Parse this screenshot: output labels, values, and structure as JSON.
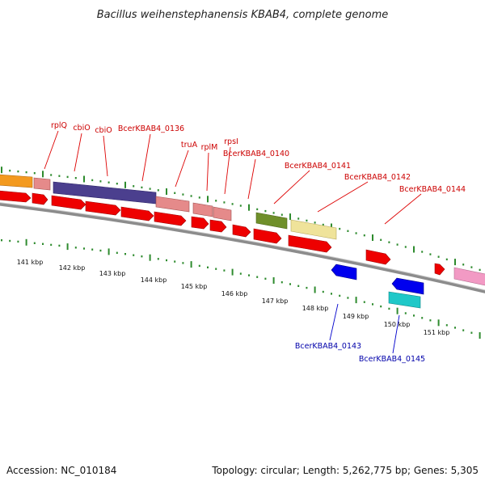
{
  "title": "Bacillus weihenstephanensis KBAB4, complete genome",
  "footer": {
    "accession": "Accession: NC_010184",
    "topology": "Topology: circular; Length: 5,262,775 bp; Genes: 5,305"
  },
  "colors": {
    "track_gray": "#8c8c8c",
    "tick_green": "#2e8b2e",
    "gene_red": "#ee0000",
    "label_red": "#cc0000",
    "label_blue": "#0000aa"
  },
  "scale_labels": [
    "141 kbp",
    "142 kbp",
    "143 kbp",
    "144 kbp",
    "145 kbp",
    "146 kbp",
    "147 kbp",
    "148 kbp",
    "149 kbp",
    "150 kbp",
    "151 kbp"
  ],
  "gene_labels_top": [
    "rplQ",
    "cbiO",
    "cbiO",
    "BcerKBAB4_0136",
    "truA",
    "rplM",
    "rpsI",
    "BcerKBAB4_0140",
    "BcerKBAB4_0141",
    "BcerKBAB4_0142",
    "BcerKBAB4_0144"
  ],
  "gene_labels_bottom": [
    "BcerKBAB4_0143",
    "BcerKBAB4_0145"
  ]
}
